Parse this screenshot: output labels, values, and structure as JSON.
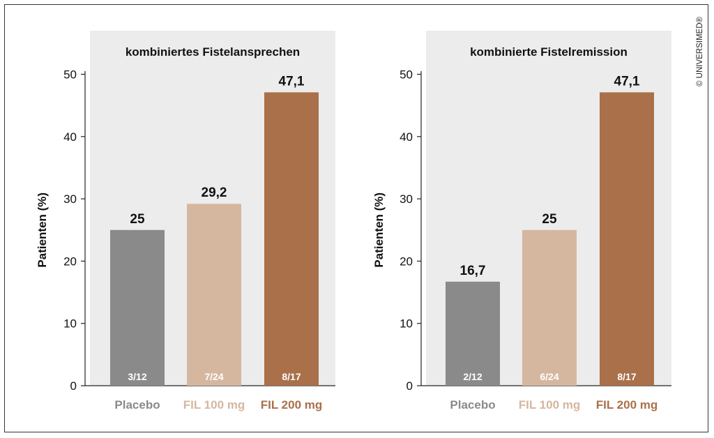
{
  "copyright": "© UNIVERSIMED®",
  "colors": {
    "panel": "#ececec",
    "placebo": "#8a8a8a",
    "fil100": "#d5b7a0",
    "fil200": "#a9704a",
    "axis": "#222222",
    "text": "#111111"
  },
  "chart_data": [
    {
      "type": "bar",
      "title": "kombiniertes Fistelansprechen",
      "ylabel": "Patienten (%)",
      "ylim": [
        0,
        55
      ],
      "yticks": [
        "0",
        "10",
        "20",
        "30",
        "40",
        "50"
      ],
      "categories": [
        "Placebo",
        "FIL 100 mg",
        "FIL 200 mg"
      ],
      "values": [
        25,
        29.2,
        47.1
      ],
      "value_labels": [
        "25",
        "29,2",
        "47,1"
      ],
      "inside_labels": [
        "3/12",
        "7/24",
        "8/17"
      ],
      "grid": false
    },
    {
      "type": "bar",
      "title": "kombinierte Fistelremission",
      "ylabel": "Patienten (%)",
      "ylim": [
        0,
        55
      ],
      "yticks": [
        "0",
        "10",
        "20",
        "30",
        "40",
        "50"
      ],
      "categories": [
        "Placebo",
        "FIL 100 mg",
        "FIL 200 mg"
      ],
      "values": [
        16.7,
        25,
        47.1
      ],
      "value_labels": [
        "16,7",
        "25",
        "47,1"
      ],
      "inside_labels": [
        "2/12",
        "6/24",
        "8/17"
      ],
      "grid": false
    }
  ]
}
